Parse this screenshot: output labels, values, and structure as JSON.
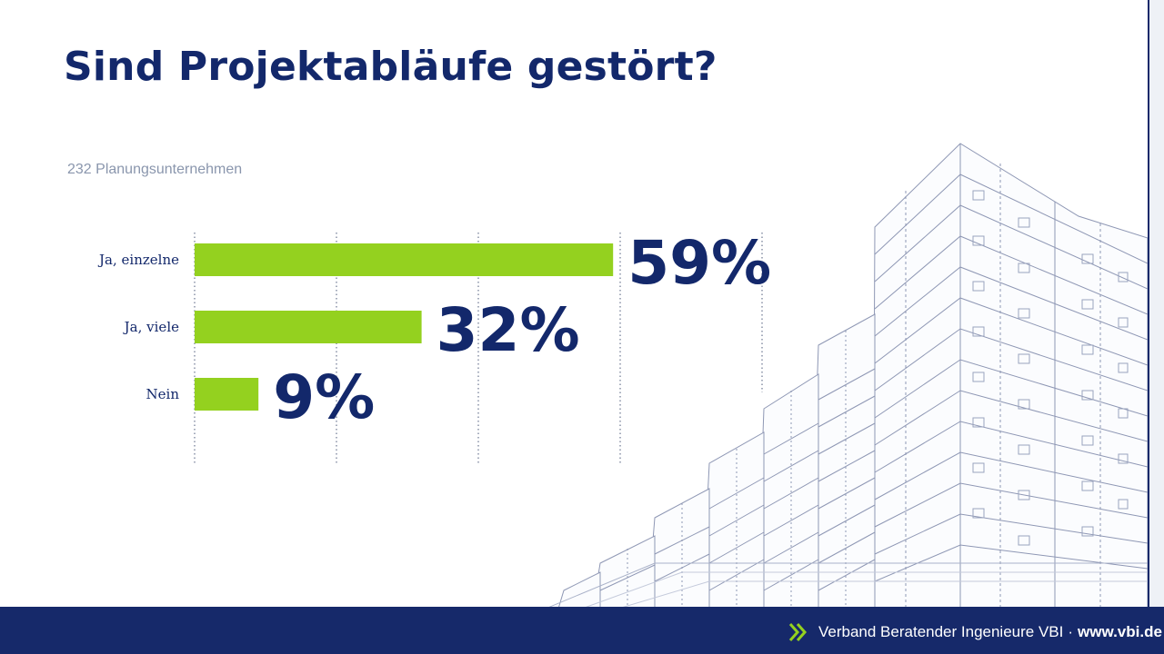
{
  "slide": {
    "title": "Sind Projektabläufe gestört?",
    "subtitle": "232 Planungsunternehmen"
  },
  "footer": {
    "org": "Verband Beratender Ingenieure VBI",
    "separator": "·",
    "url": "www.vbi.de",
    "icon": "double-chevron-right-icon"
  },
  "colors": {
    "bar": "#94d11f",
    "label": "#13286b",
    "footer_bg": "#16296a",
    "grid": "#6b7690"
  },
  "chart_data": {
    "type": "bar",
    "orientation": "horizontal",
    "title": "Sind Projektabläufe gestört?",
    "subtitle": "232 Planungsunternehmen",
    "categories": [
      "Ja, einzelne",
      "Ja, viele",
      "Nein"
    ],
    "values": [
      59,
      32,
      9
    ],
    "value_labels": [
      "59%",
      "32%",
      "9%"
    ],
    "unit": "%",
    "xlim": [
      0,
      80
    ],
    "grid": "vertical dotted lines every 20",
    "legend": "none"
  }
}
